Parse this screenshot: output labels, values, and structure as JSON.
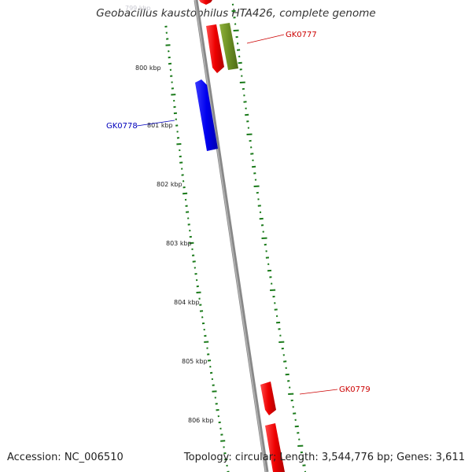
{
  "title": "Geobacillus kaustophilus HTA426, complete genome",
  "footer": {
    "accession": "Accession: NC_006510",
    "summary": "Topology: circular; Length: 3,544,776 bp; Genes: 3,611"
  },
  "ticks": [
    "799 kbp",
    "800 kbp",
    "801 kbp",
    "802 kbp",
    "803 kbp",
    "804 kbp",
    "805 kbp",
    "806 kbp"
  ],
  "genes": [
    {
      "name": "GK0777",
      "color": "#cc0000"
    },
    {
      "name": "GK0778",
      "color": "#0000bb"
    },
    {
      "name": "GK0779",
      "color": "#cc0000"
    }
  ],
  "colors": {
    "forward_gene": "#ee0000",
    "reverse_gene": "#0000ee",
    "olive_gene": "#6b8e23",
    "backbone": "#888888",
    "gc_track": "#1a7a1a"
  }
}
